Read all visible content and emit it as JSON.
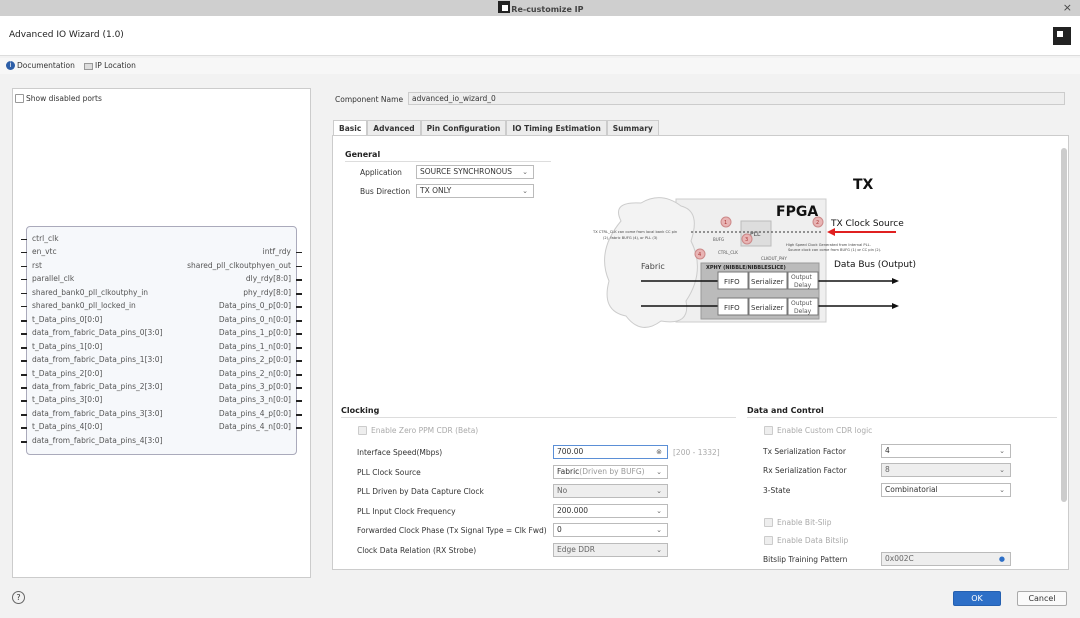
{
  "window": {
    "title": "Re-customize IP"
  },
  "header": {
    "title": "Advanced IO Wizard (1.0)"
  },
  "toolbar": {
    "documentation": "Documentation",
    "ip_location": "IP Location"
  },
  "left_panel": {
    "show_disabled_ports": "Show disabled ports",
    "left_ports": [
      "ctrl_clk",
      "en_vtc",
      "rst",
      "parallel_clk",
      "shared_bank0_pll_clkoutphy_in",
      "shared_bank0_pll_locked_in",
      "t_Data_pins_0[0:0]",
      "data_from_fabric_Data_pins_0[3:0]",
      "t_Data_pins_1[0:0]",
      "data_from_fabric_Data_pins_1[3:0]",
      "t_Data_pins_2[0:0]",
      "data_from_fabric_Data_pins_2[3:0]",
      "t_Data_pins_3[0:0]",
      "data_from_fabric_Data_pins_3[3:0]",
      "t_Data_pins_4[0:0]",
      "data_from_fabric_Data_pins_4[3:0]"
    ],
    "right_ports": [
      "intf_rdy",
      "shared_pll_clkoutphyen_out",
      "dly_rdy[8:0]",
      "phy_rdy[8:0]",
      "Data_pins_0_p[0:0]",
      "Data_pins_0_n[0:0]",
      "Data_pins_1_p[0:0]",
      "Data_pins_1_n[0:0]",
      "Data_pins_2_p[0:0]",
      "Data_pins_2_n[0:0]",
      "Data_pins_3_p[0:0]",
      "Data_pins_3_n[0:0]",
      "Data_pins_4_p[0:0]",
      "Data_pins_4_n[0:0]"
    ]
  },
  "component": {
    "label": "Component Name",
    "value": "advanced_io_wizard_0"
  },
  "tabs": [
    "Basic",
    "Advanced",
    "Pin Configuration",
    "IO Timing Estimation",
    "Summary"
  ],
  "general": {
    "title": "General",
    "application_label": "Application",
    "application": "SOURCE SYNCHRONOUS",
    "bus_direction_label": "Bus Direction",
    "bus_direction": "TX ONLY"
  },
  "diagram": {
    "title": "TX",
    "fpga": "FPGA",
    "fabric": "Fabric",
    "pll": "PLL",
    "bufg": "BUFG",
    "ctrl_clk": "CTRL_CLK",
    "clkout_phy": "CLKOUT_PHY",
    "xphy": "XPHY (NIBBLE/NIBBLESLICE)",
    "fifo": "FIFO",
    "serializer": "Serializer",
    "output_delay_1": "Output",
    "output_delay_2": "Delay",
    "tx_clock_source": "TX Clock Source",
    "data_bus": "Data Bus (Output)",
    "note_ctrl_1": "TX CTRL_CLK  can come from local bank CC pin",
    "note_ctrl_2": "(2), fabric BUFG (4), or PLL (3)",
    "note_hs_1": "High Speed Clock Generated from Internal PLL.",
    "note_hs_2": "Source clock can come from BUFG (1) or CC pin (2).",
    "markers": [
      "1",
      "2",
      "3",
      "4"
    ],
    "clock_arrow_color": "#e02020"
  },
  "clocking": {
    "title": "Clocking",
    "zero_ppm": "Enable Zero PPM CDR (Beta)",
    "rows": [
      {
        "label": "Interface Speed(Mbps)",
        "value": "700.00",
        "range": "[200 - 1332]"
      },
      {
        "label": "PLL Clock Source",
        "value": "Fabric",
        "value_hint": "(Driven by BUFG)"
      },
      {
        "label": "PLL Driven by Data Capture Clock",
        "value": "No"
      },
      {
        "label": "PLL Input Clock Frequency",
        "value": "200.000"
      },
      {
        "label": "Forwarded Clock Phase (Tx Signal Type = Clk Fwd)",
        "value": "0"
      },
      {
        "label": "Clock Data Relation (RX Strobe)",
        "value": "Edge DDR"
      }
    ]
  },
  "data_control": {
    "title": "Data and Control",
    "custom_cdr": "Enable Custom CDR logic",
    "rows": [
      {
        "label": "Tx Serialization Factor",
        "value": "4"
      },
      {
        "label": "Rx Serialization Factor",
        "value": "8"
      },
      {
        "label": "3-State",
        "value": "Combinatorial"
      }
    ],
    "bit_slip": "Enable Bit-Slip",
    "data_bitslip": "Enable Data Bitslip",
    "training_label": "Bitslip Training Pattern",
    "training_value": "0x002C"
  },
  "footer": {
    "ok": "OK",
    "cancel": "Cancel",
    "help": "?"
  }
}
